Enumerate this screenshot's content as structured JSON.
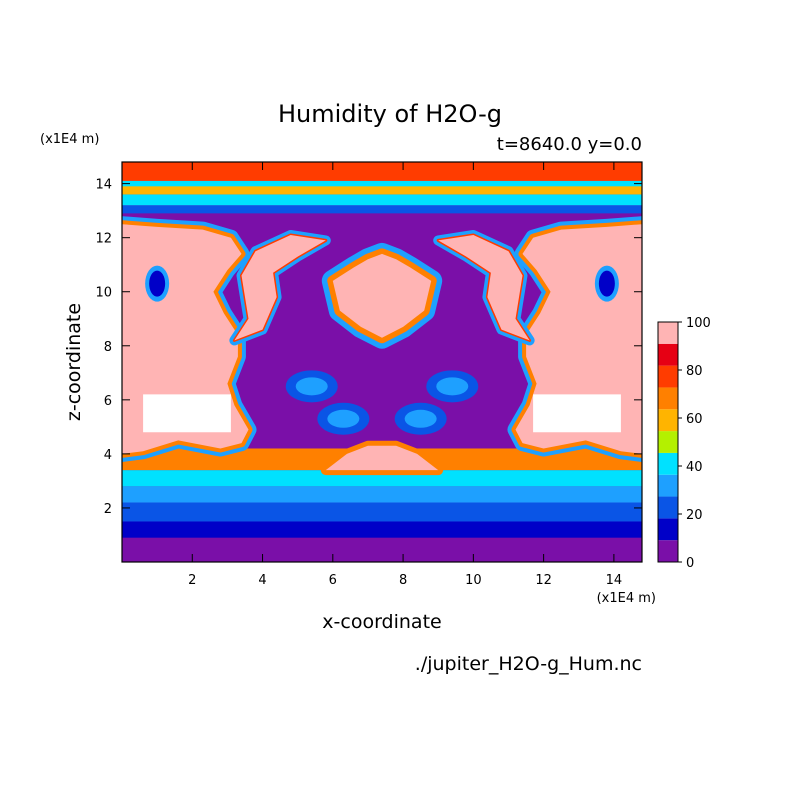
{
  "chart_data": {
    "type": "heatmap",
    "title": "Humidity of H2O-g",
    "subtitle": "t=8640.0 y=0.0",
    "xlabel": "x-coordinate",
    "ylabel": "z-coordinate",
    "x_unit": "(x1E4 m)",
    "y_unit": "(x1E4 m)",
    "source_file": "./jupiter_H2O-g_Hum.nc",
    "xlim": [
      0,
      14.8
    ],
    "ylim": [
      0,
      14.8
    ],
    "x_ticks": [
      2,
      4,
      6,
      8,
      10,
      12,
      14
    ],
    "y_ticks": [
      2,
      4,
      6,
      8,
      10,
      12,
      14
    ],
    "colorbar": {
      "levels": [
        0,
        10,
        20,
        30,
        40,
        50,
        60,
        70,
        80,
        90,
        100
      ],
      "tick_labels": [
        "0",
        "20",
        "40",
        "60",
        "80",
        "100"
      ],
      "colors": [
        "#7a0fa8",
        "#0000c8",
        "#0a55e6",
        "#1ea0ff",
        "#00e1ff",
        "#b4f000",
        "#ffb400",
        "#ff8000",
        "#ff3c00",
        "#e60014",
        "#ffb4b4"
      ]
    },
    "bands_z": [
      {
        "z": [
          0.0,
          0.9
        ],
        "humidity": 5
      },
      {
        "z": [
          0.9,
          1.5
        ],
        "humidity": 15
      },
      {
        "z": [
          1.5,
          2.2
        ],
        "humidity": 20
      },
      {
        "z": [
          2.2,
          2.8
        ],
        "humidity": 30
      },
      {
        "z": [
          2.8,
          3.4
        ],
        "humidity": 45
      },
      {
        "z": [
          3.4,
          4.2
        ],
        "humidity": 75
      },
      {
        "z": [
          12.9,
          13.2
        ],
        "humidity": 20
      },
      {
        "z": [
          13.2,
          13.6
        ],
        "humidity": 45
      },
      {
        "z": [
          13.6,
          14.0
        ],
        "humidity": 65
      },
      {
        "z": [
          14.0,
          14.8
        ],
        "humidity": 80
      }
    ],
    "regions": [
      {
        "name": "left saturated column",
        "x": [
          0.0,
          3.2
        ],
        "z": [
          4.2,
          12.3
        ],
        "humidity": 100
      },
      {
        "name": "right saturated column",
        "x": [
          11.6,
          14.8
        ],
        "z": [
          4.2,
          12.3
        ],
        "humidity": 100
      },
      {
        "name": "central saturated plume",
        "x": [
          6.1,
          9.0
        ],
        "z": [
          8.3,
          11.3
        ],
        "humidity": 100
      },
      {
        "name": "upper central dry zone",
        "x": [
          3.2,
          11.6
        ],
        "z": [
          4.0,
          12.9
        ],
        "humidity": 5
      },
      {
        "name": "lower central moist arc",
        "x": [
          5.9,
          9.1
        ],
        "z": [
          3.4,
          4.3
        ],
        "humidity": 100
      }
    ]
  }
}
